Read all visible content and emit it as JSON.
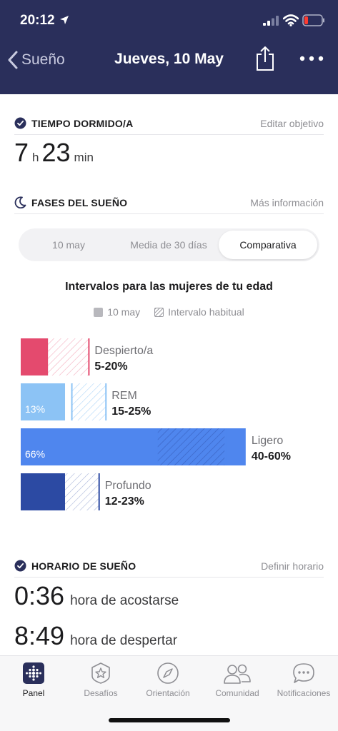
{
  "status": {
    "time": "20:12"
  },
  "nav": {
    "back_label": "Sueño",
    "title": "Jueves, 10 May"
  },
  "tiempo": {
    "title": "TIEMPO DORMIDO/A",
    "link": "Editar objetivo",
    "hours": "7",
    "hours_unit": "h",
    "minutes": "23",
    "minutes_unit": "min"
  },
  "fases": {
    "title": "FASES DEL SUEÑO",
    "link": "Más información",
    "tabs": [
      "10 may",
      "Media de 30 días",
      "Comparativa"
    ],
    "active_tab": 2
  },
  "chart_data": {
    "type": "bar",
    "title": "Intervalos para las mujeres de tu edad",
    "legend": [
      "10 may",
      "Intervalo habitual"
    ],
    "categories": [
      "Despierto/a",
      "REM",
      "Ligero",
      "Profundo"
    ],
    "series": [
      {
        "name": "10 may",
        "values": [
          8,
          13,
          66,
          13
        ]
      },
      {
        "name": "Intervalo habitual",
        "ranges": [
          [
            5,
            20
          ],
          [
            15,
            25
          ],
          [
            40,
            60
          ],
          [
            12,
            23
          ]
        ]
      }
    ],
    "value_labels": [
      "",
      "13%",
      "66%",
      ""
    ],
    "range_labels": [
      "5-20%",
      "15-25%",
      "40-60%",
      "12-23%"
    ],
    "colors": [
      "#e44a6e",
      "#8cc3f5",
      "#4f86ee",
      "#2c4aa3"
    ]
  },
  "horario": {
    "title": "HORARIO DE SUEÑO",
    "link": "Definir horario",
    "bedtime": "0:36",
    "bedtime_label": "hora de acostarse",
    "waketime": "8:49",
    "waketime_label": "hora de despertar"
  },
  "tabbar": {
    "items": [
      {
        "label": "Panel",
        "icon": "panel-icon"
      },
      {
        "label": "Desafíos",
        "icon": "star-badge-icon"
      },
      {
        "label": "Orientación",
        "icon": "compass-icon"
      },
      {
        "label": "Comunidad",
        "icon": "people-icon"
      },
      {
        "label": "Notificaciones",
        "icon": "chat-bubble-icon"
      }
    ],
    "active": 0
  }
}
